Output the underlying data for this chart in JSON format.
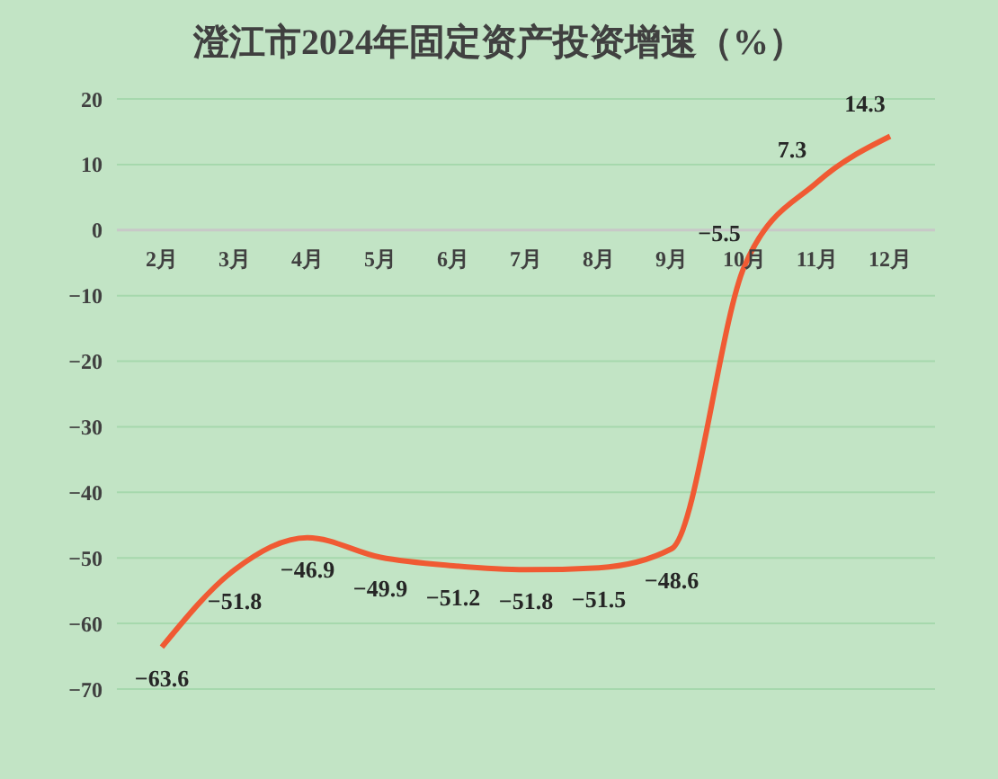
{
  "chart_data": {
    "type": "line",
    "title": "澄江市2024年固定资产投资增速（%）",
    "categories": [
      "2月",
      "3月",
      "4月",
      "5月",
      "6月",
      "7月",
      "8月",
      "9月",
      "10月",
      "11月",
      "12月"
    ],
    "series": [
      {
        "color": "#f05a33",
        "values": [
          -63.6,
          -51.8,
          -46.9,
          -49.9,
          -51.2,
          -51.8,
          -51.5,
          -48.6,
          -5.5,
          7.3,
          14.3
        ]
      }
    ],
    "ylim": [
      -70,
      20
    ],
    "yticks": [
      -70,
      -60,
      -50,
      -40,
      -30,
      -20,
      -10,
      0,
      10,
      20
    ],
    "grid": "y",
    "data_labels": true,
    "legend": false,
    "marker": "none",
    "line_style": "solid"
  }
}
